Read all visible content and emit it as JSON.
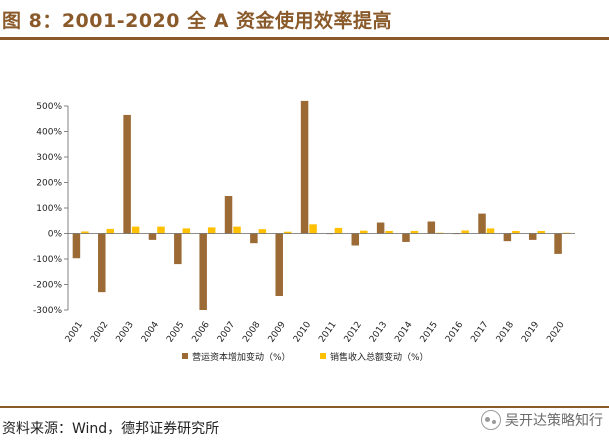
{
  "header": {
    "title": "图 8：2001-2020 全 A 资金使用效率提高"
  },
  "footer": {
    "source": "资料来源：Wind，德邦证券研究所",
    "watermark": "吴开达策略知行"
  },
  "colors": {
    "brand": "#8a5a2b",
    "series_a": "#9c6a35",
    "series_b": "#ffc000"
  },
  "chart_data": {
    "type": "bar",
    "title": "",
    "xlabel": "",
    "ylabel": "",
    "ylim": [
      -300,
      500
    ],
    "yticks": [
      -300,
      -200,
      -100,
      0,
      100,
      200,
      300,
      400,
      500
    ],
    "ytick_labels": [
      "-300%",
      "-200%",
      "-100%",
      "0%",
      "100%",
      "200%",
      "300%",
      "400%",
      "500%"
    ],
    "categories": [
      "2001",
      "2002",
      "2003",
      "2004",
      "2005",
      "2006",
      "2007",
      "2008",
      "2009",
      "2010",
      "2011",
      "2012",
      "2013",
      "2014",
      "2015",
      "2016",
      "2017",
      "2018",
      "2019",
      "2020"
    ],
    "series": [
      {
        "name": "营运资本增加变动（%）",
        "color": "#9c6a35",
        "values": [
          -97,
          -230,
          465,
          -25,
          -120,
          -300,
          147,
          -38,
          -245,
          520,
          -2,
          -47,
          43,
          -33,
          47,
          -2,
          78,
          -30,
          -25,
          -80
        ]
      },
      {
        "name": "销售收入总额变动（%）",
        "color": "#ffc000",
        "values": [
          8,
          18,
          27,
          27,
          20,
          24,
          27,
          17,
          7,
          36,
          22,
          11,
          10,
          10,
          3,
          12,
          20,
          10,
          10,
          3
        ]
      }
    ],
    "legend_position": "bottom"
  }
}
